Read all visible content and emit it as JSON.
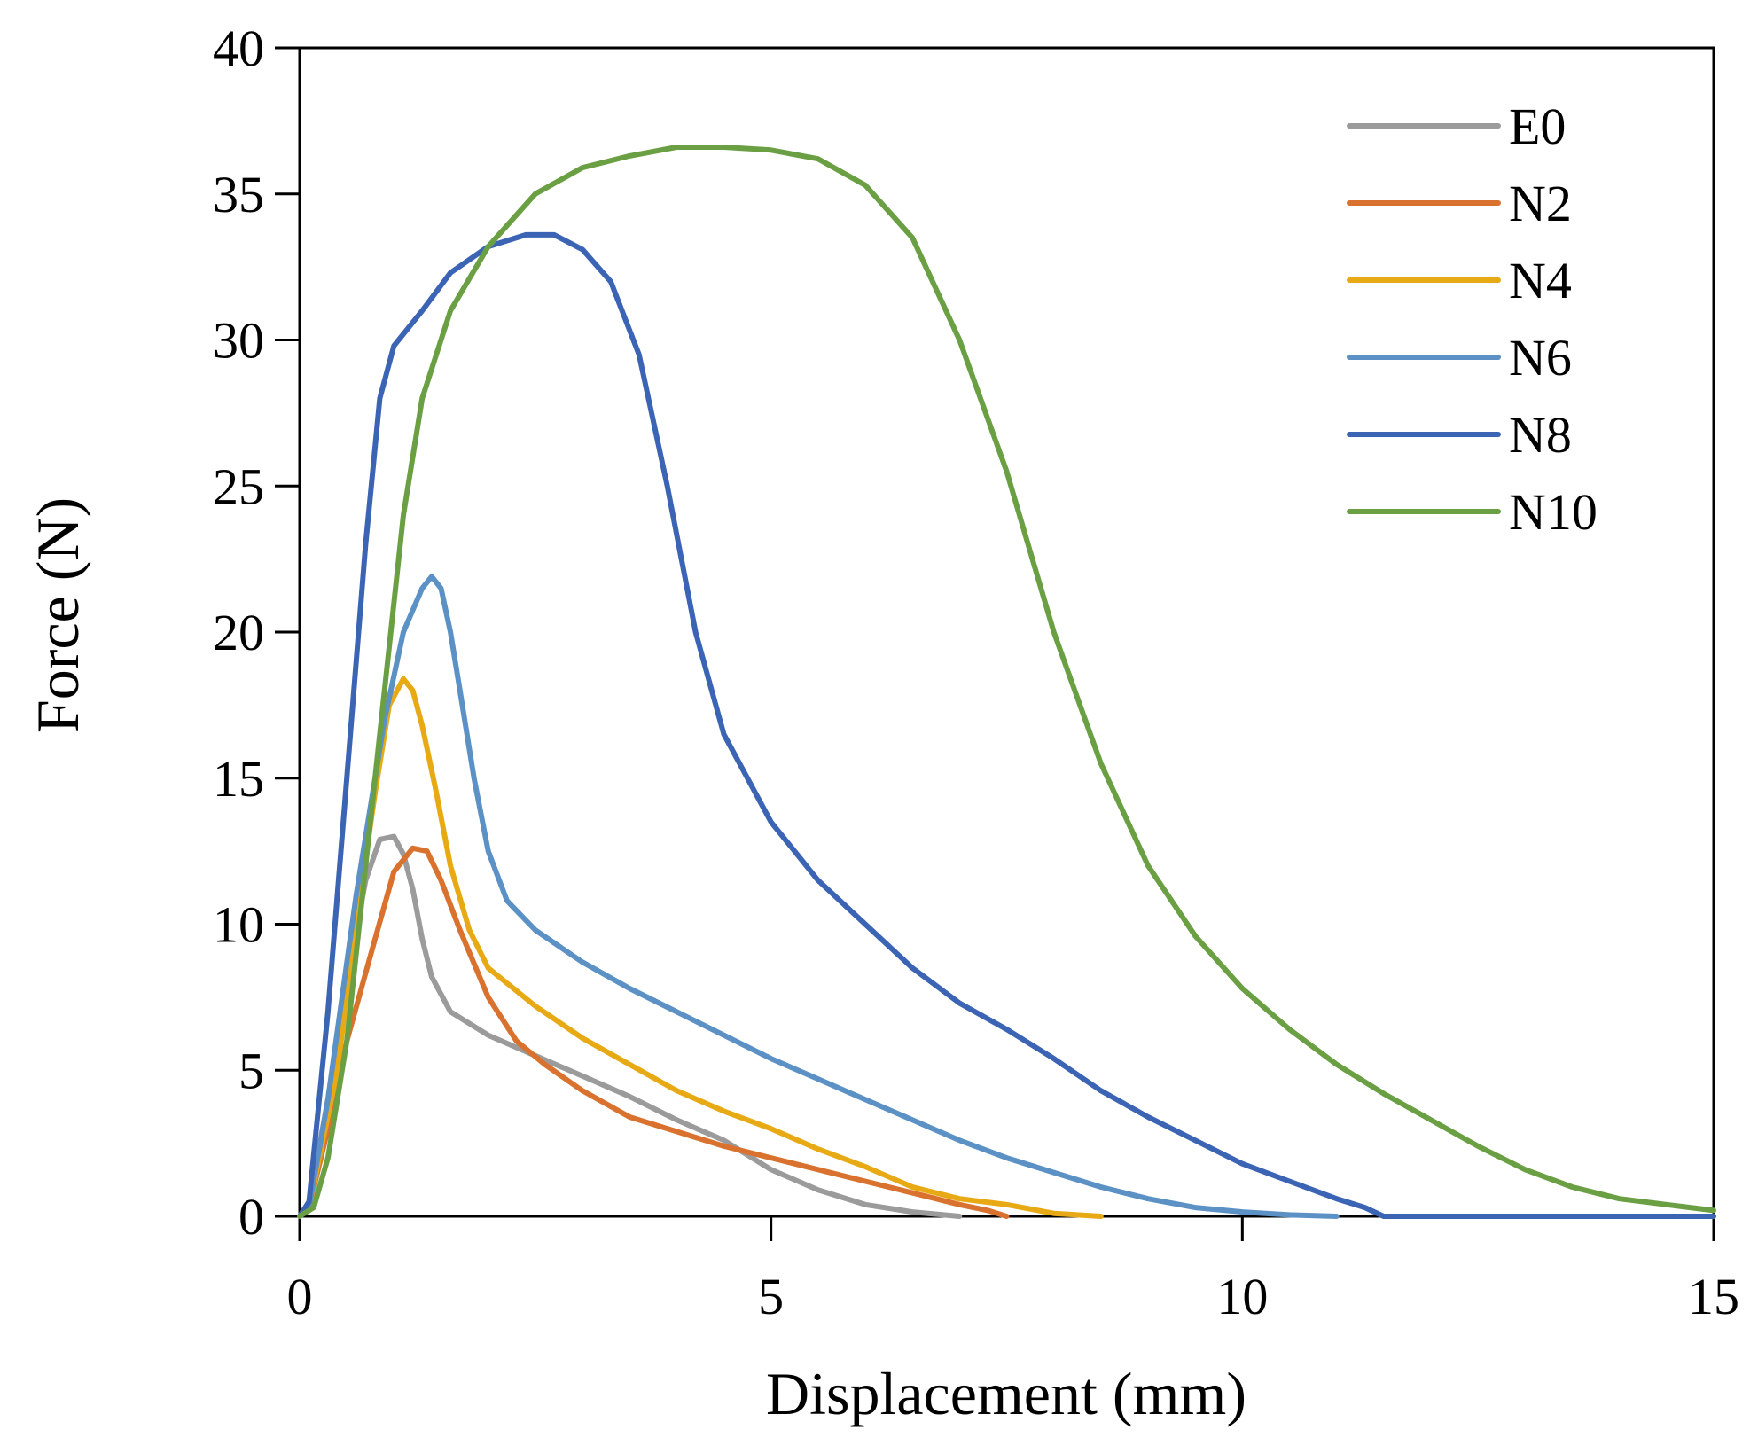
{
  "chart_data": {
    "type": "line",
    "title": "",
    "xlabel": "Displacement (mm)",
    "ylabel": "Force (N)",
    "xlim": [
      0,
      15
    ],
    "ylim": [
      0,
      40
    ],
    "xticks": [
      0,
      5,
      10,
      15
    ],
    "yticks": [
      0,
      5,
      10,
      15,
      20,
      25,
      30,
      35,
      40
    ],
    "grid": false,
    "legend_position": "top-right",
    "series": [
      {
        "name": "E0",
        "color": "#9b9b9b",
        "points": [
          [
            0,
            0
          ],
          [
            0.1,
            0.5
          ],
          [
            0.3,
            4
          ],
          [
            0.5,
            8
          ],
          [
            0.7,
            11.5
          ],
          [
            0.85,
            12.9
          ],
          [
            1.0,
            13.0
          ],
          [
            1.1,
            12.4
          ],
          [
            1.2,
            11.2
          ],
          [
            1.3,
            9.5
          ],
          [
            1.4,
            8.2
          ],
          [
            1.6,
            7.0
          ],
          [
            2.0,
            6.2
          ],
          [
            2.5,
            5.5
          ],
          [
            3.0,
            4.8
          ],
          [
            3.5,
            4.1
          ],
          [
            4.0,
            3.3
          ],
          [
            4.5,
            2.6
          ],
          [
            5.0,
            1.6
          ],
          [
            5.5,
            0.9
          ],
          [
            6.0,
            0.4
          ],
          [
            6.5,
            0.15
          ],
          [
            7.0,
            0
          ]
        ]
      },
      {
        "name": "N2",
        "color": "#d9722e",
        "points": [
          [
            0,
            0
          ],
          [
            0.1,
            0.3
          ],
          [
            0.3,
            3
          ],
          [
            0.5,
            6
          ],
          [
            0.8,
            9.5
          ],
          [
            1.0,
            11.8
          ],
          [
            1.2,
            12.6
          ],
          [
            1.35,
            12.5
          ],
          [
            1.5,
            11.5
          ],
          [
            1.7,
            9.8
          ],
          [
            2.0,
            7.5
          ],
          [
            2.3,
            6.0
          ],
          [
            2.6,
            5.2
          ],
          [
            3.0,
            4.3
          ],
          [
            3.5,
            3.4
          ],
          [
            4.0,
            2.9
          ],
          [
            4.5,
            2.4
          ],
          [
            5.0,
            2.0
          ],
          [
            5.5,
            1.6
          ],
          [
            6.0,
            1.2
          ],
          [
            6.5,
            0.8
          ],
          [
            7.0,
            0.4
          ],
          [
            7.3,
            0.2
          ],
          [
            7.5,
            0
          ]
        ]
      },
      {
        "name": "N4",
        "color": "#e8aa14",
        "points": [
          [
            0,
            0
          ],
          [
            0.1,
            0.3
          ],
          [
            0.4,
            5
          ],
          [
            0.6,
            10
          ],
          [
            0.8,
            14.5
          ],
          [
            0.95,
            17.5
          ],
          [
            1.1,
            18.4
          ],
          [
            1.2,
            18.0
          ],
          [
            1.3,
            16.8
          ],
          [
            1.45,
            14.5
          ],
          [
            1.6,
            12.0
          ],
          [
            1.8,
            9.8
          ],
          [
            2.0,
            8.5
          ],
          [
            2.5,
            7.2
          ],
          [
            3.0,
            6.1
          ],
          [
            3.5,
            5.2
          ],
          [
            4.0,
            4.3
          ],
          [
            4.5,
            3.6
          ],
          [
            5.0,
            3.0
          ],
          [
            5.5,
            2.3
          ],
          [
            6.0,
            1.7
          ],
          [
            6.5,
            1.0
          ],
          [
            7.0,
            0.6
          ],
          [
            7.5,
            0.4
          ],
          [
            8.0,
            0.1
          ],
          [
            8.5,
            0
          ]
        ]
      },
      {
        "name": "N6",
        "color": "#5b91c5",
        "points": [
          [
            0,
            0
          ],
          [
            0.1,
            0.3
          ],
          [
            0.3,
            4
          ],
          [
            0.6,
            11
          ],
          [
            0.9,
            17
          ],
          [
            1.1,
            20.0
          ],
          [
            1.3,
            21.5
          ],
          [
            1.4,
            21.9
          ],
          [
            1.5,
            21.5
          ],
          [
            1.6,
            20.0
          ],
          [
            1.7,
            18.0
          ],
          [
            1.85,
            15.0
          ],
          [
            2.0,
            12.5
          ],
          [
            2.2,
            10.8
          ],
          [
            2.5,
            9.8
          ],
          [
            3.0,
            8.7
          ],
          [
            3.5,
            7.8
          ],
          [
            4.0,
            7.0
          ],
          [
            4.5,
            6.2
          ],
          [
            5.0,
            5.4
          ],
          [
            5.5,
            4.7
          ],
          [
            6.0,
            4.0
          ],
          [
            6.5,
            3.3
          ],
          [
            7.0,
            2.6
          ],
          [
            7.5,
            2.0
          ],
          [
            8.0,
            1.5
          ],
          [
            8.5,
            1.0
          ],
          [
            9.0,
            0.6
          ],
          [
            9.5,
            0.3
          ],
          [
            10.0,
            0.15
          ],
          [
            10.5,
            0.05
          ],
          [
            11.0,
            0
          ]
        ]
      },
      {
        "name": "N8",
        "color": "#3c64b4",
        "points": [
          [
            0,
            0
          ],
          [
            0.1,
            0.5
          ],
          [
            0.3,
            7
          ],
          [
            0.5,
            15
          ],
          [
            0.7,
            23
          ],
          [
            0.85,
            28.0
          ],
          [
            1.0,
            29.8
          ],
          [
            1.3,
            31.0
          ],
          [
            1.6,
            32.3
          ],
          [
            2.0,
            33.2
          ],
          [
            2.4,
            33.6
          ],
          [
            2.7,
            33.6
          ],
          [
            3.0,
            33.1
          ],
          [
            3.3,
            32.0
          ],
          [
            3.6,
            29.5
          ],
          [
            3.9,
            25.0
          ],
          [
            4.2,
            20.0
          ],
          [
            4.5,
            16.5
          ],
          [
            5.0,
            13.5
          ],
          [
            5.5,
            11.5
          ],
          [
            6.0,
            10.0
          ],
          [
            6.5,
            8.5
          ],
          [
            7.0,
            7.3
          ],
          [
            7.5,
            6.4
          ],
          [
            8.0,
            5.4
          ],
          [
            8.5,
            4.3
          ],
          [
            9.0,
            3.4
          ],
          [
            9.5,
            2.6
          ],
          [
            10.0,
            1.8
          ],
          [
            10.5,
            1.2
          ],
          [
            11.0,
            0.6
          ],
          [
            11.3,
            0.3
          ],
          [
            11.5,
            0
          ],
          [
            15.0,
            0
          ]
        ]
      },
      {
        "name": "N10",
        "color": "#6aa043",
        "points": [
          [
            0,
            0
          ],
          [
            0.15,
            0.3
          ],
          [
            0.3,
            2
          ],
          [
            0.5,
            6
          ],
          [
            0.7,
            12
          ],
          [
            0.9,
            18
          ],
          [
            1.1,
            24
          ],
          [
            1.3,
            28.0
          ],
          [
            1.6,
            31.0
          ],
          [
            2.0,
            33.2
          ],
          [
            2.5,
            35.0
          ],
          [
            3.0,
            35.9
          ],
          [
            3.5,
            36.3
          ],
          [
            4.0,
            36.6
          ],
          [
            4.5,
            36.6
          ],
          [
            5.0,
            36.5
          ],
          [
            5.5,
            36.2
          ],
          [
            6.0,
            35.3
          ],
          [
            6.5,
            33.5
          ],
          [
            7.0,
            30.0
          ],
          [
            7.5,
            25.5
          ],
          [
            8.0,
            20.0
          ],
          [
            8.5,
            15.5
          ],
          [
            9.0,
            12.0
          ],
          [
            9.5,
            9.6
          ],
          [
            10.0,
            7.8
          ],
          [
            10.5,
            6.4
          ],
          [
            11.0,
            5.2
          ],
          [
            11.5,
            4.2
          ],
          [
            12.0,
            3.3
          ],
          [
            12.5,
            2.4
          ],
          [
            13.0,
            1.6
          ],
          [
            13.5,
            1.0
          ],
          [
            14.0,
            0.6
          ],
          [
            14.5,
            0.4
          ],
          [
            15.0,
            0.2
          ]
        ]
      }
    ]
  }
}
